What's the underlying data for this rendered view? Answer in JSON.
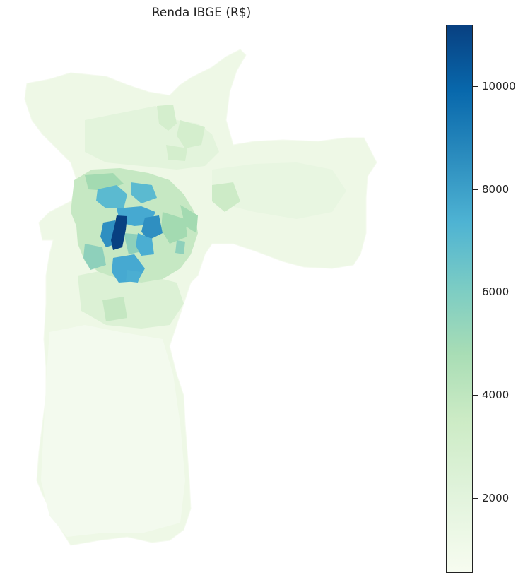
{
  "title": "Renda IBGE (R$)",
  "colorbar": {
    "min": 500,
    "max": 11200,
    "ticks": [
      {
        "value": 2000,
        "label": "2000"
      },
      {
        "value": 4000,
        "label": "4000"
      },
      {
        "value": 6000,
        "label": "6000"
      },
      {
        "value": 8000,
        "label": "8000"
      },
      {
        "value": 10000,
        "label": "10000"
      }
    ],
    "colormap": "GnBu"
  },
  "colors": {
    "low": "#f7fcf0",
    "mid": "#7bccc4",
    "high": "#084081"
  }
}
